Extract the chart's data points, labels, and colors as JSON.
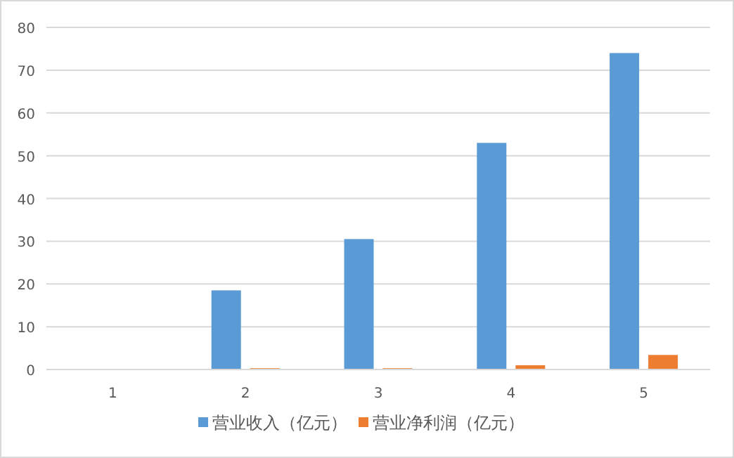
{
  "chart_data": {
    "type": "bar",
    "categories": [
      "1",
      "2",
      "3",
      "4",
      "5"
    ],
    "series": [
      {
        "name": "营业收入（亿元）",
        "color": "#5b9bd5",
        "values": [
          0,
          18.5,
          30.5,
          53,
          74
        ]
      },
      {
        "name": "营业净利润（亿元）",
        "color": "#ed7d31",
        "values": [
          0,
          0.3,
          0.3,
          1,
          3.4
        ]
      }
    ],
    "ylim": [
      0,
      80
    ],
    "yticks": [
      0,
      10,
      20,
      30,
      40,
      50,
      60,
      70,
      80
    ],
    "grid": "y",
    "legend": "bottom"
  }
}
